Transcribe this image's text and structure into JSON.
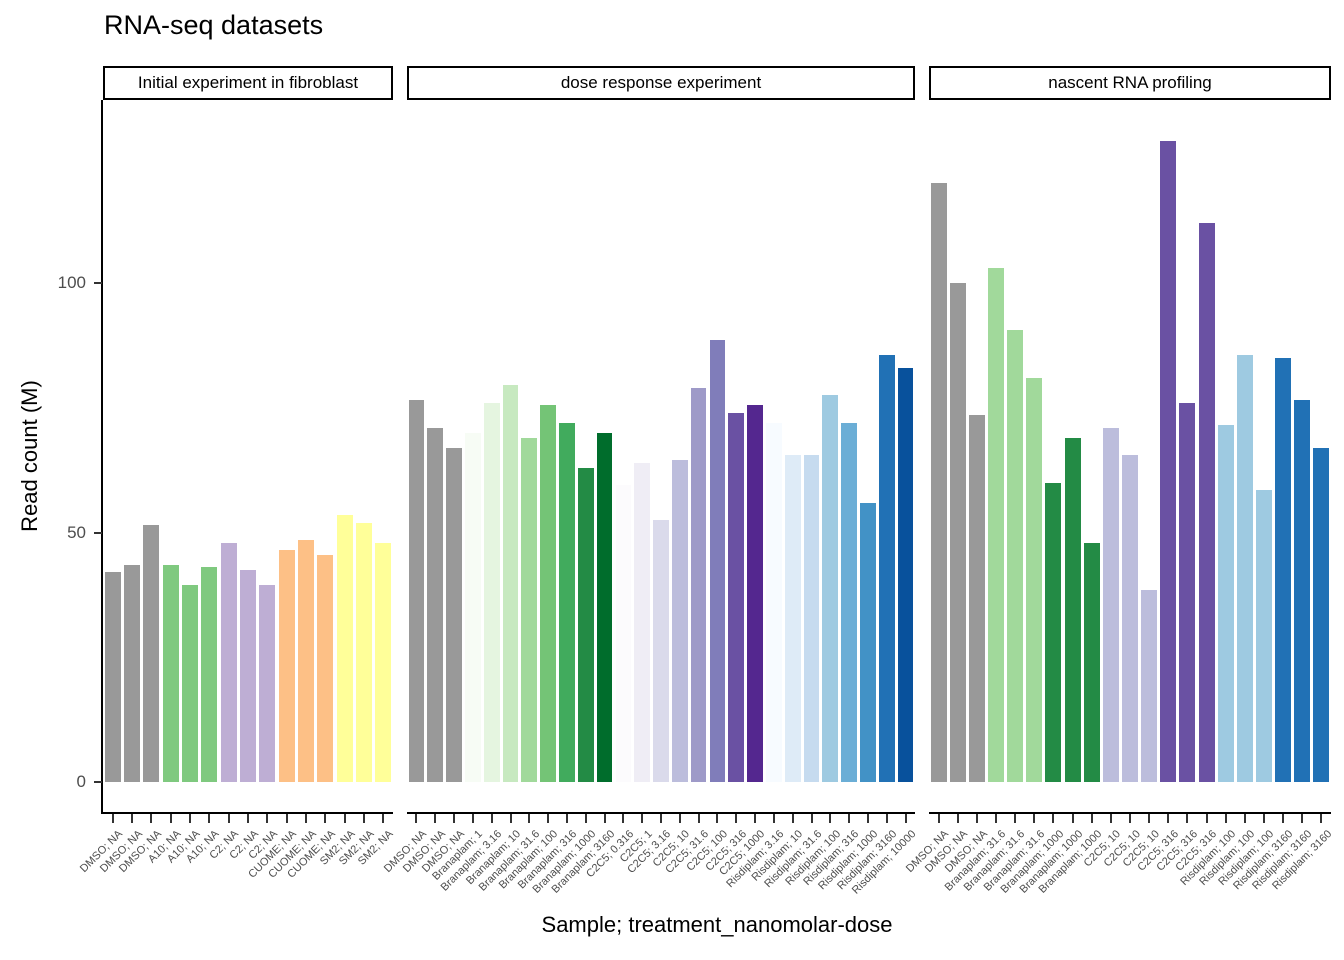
{
  "theme": {
    "background": "#ffffff",
    "axis_line_color": "#000000",
    "tick_color": "#333333",
    "tick_label_color": "#4d4d4d",
    "strip_border_color": "#000000",
    "strip_background": "#ffffff",
    "dmso_gray": "#999999"
  },
  "chart_data": {
    "type": "bar",
    "title": "RNA-seq datasets",
    "xlabel": "Sample; treatment_nanomolar-dose",
    "ylabel": "Read count (M)",
    "yticks": [
      0,
      50,
      100
    ],
    "ylim": [
      -6.2,
      136.7
    ],
    "grid": false,
    "legend_position": "none",
    "facets": [
      {
        "label": "Initial experiment in fibroblast",
        "bars": [
          {
            "label": "DMSO; NA",
            "value": 42,
            "color": "#999999"
          },
          {
            "label": "DMSO; NA",
            "value": 43.5,
            "color": "#999999"
          },
          {
            "label": "DMSO; NA",
            "value": 51.5,
            "color": "#999999"
          },
          {
            "label": "A10; NA",
            "value": 43.5,
            "color": "#7FC97F"
          },
          {
            "label": "A10; NA",
            "value": 39.5,
            "color": "#7FC97F"
          },
          {
            "label": "A10; NA",
            "value": 43,
            "color": "#7FC97F"
          },
          {
            "label": "C2; NA",
            "value": 48,
            "color": "#BEAED4"
          },
          {
            "label": "C2; NA",
            "value": 42.5,
            "color": "#BEAED4"
          },
          {
            "label": "C2; NA",
            "value": 39.5,
            "color": "#BEAED4"
          },
          {
            "label": "CUOME; NA",
            "value": 46.5,
            "color": "#FDC086"
          },
          {
            "label": "CUOME; NA",
            "value": 48.5,
            "color": "#FDC086"
          },
          {
            "label": "CUOME; NA",
            "value": 45.5,
            "color": "#FDC086"
          },
          {
            "label": "SM2; NA",
            "value": 53.5,
            "color": "#FFFF99"
          },
          {
            "label": "SM2; NA",
            "value": 52,
            "color": "#FFFF99"
          },
          {
            "label": "SM2; NA",
            "value": 48,
            "color": "#FFFF99"
          }
        ]
      },
      {
        "label": "dose response experiment",
        "bars": [
          {
            "label": "DMSO; NA",
            "value": 76.5,
            "color": "#999999"
          },
          {
            "label": "DMSO; NA",
            "value": 71,
            "color": "#999999"
          },
          {
            "label": "DMSO; NA",
            "value": 67,
            "color": "#999999"
          },
          {
            "label": "Branaplam; 1",
            "value": 70,
            "color": "#F7FCF5"
          },
          {
            "label": "Branaplam; 3.16",
            "value": 76,
            "color": "#E5F5E0"
          },
          {
            "label": "Branaplam; 10",
            "value": 79.5,
            "color": "#C7E9C0"
          },
          {
            "label": "Branaplam; 31.6",
            "value": 69,
            "color": "#A1D99B"
          },
          {
            "label": "Branaplam; 100",
            "value": 75.5,
            "color": "#74C476"
          },
          {
            "label": "Branaplam; 316",
            "value": 72,
            "color": "#41AB5D"
          },
          {
            "label": "Branaplam; 1000",
            "value": 63,
            "color": "#238B45"
          },
          {
            "label": "Branaplam; 3160",
            "value": 70,
            "color": "#006D2C"
          },
          {
            "label": "C2C5; 0.316",
            "value": 59.5,
            "color": "#FCFBFD"
          },
          {
            "label": "C2C5; 1",
            "value": 64,
            "color": "#EFEDF5"
          },
          {
            "label": "C2C5; 3.16",
            "value": 52.5,
            "color": "#DADAEB"
          },
          {
            "label": "C2C5; 10",
            "value": 64.5,
            "color": "#BCBDDC"
          },
          {
            "label": "C2C5; 31.6",
            "value": 79,
            "color": "#9E9AC8"
          },
          {
            "label": "C2C5; 100",
            "value": 88.5,
            "color": "#807DBA"
          },
          {
            "label": "C2C5; 316",
            "value": 74,
            "color": "#6A51A3"
          },
          {
            "label": "C2C5; 1000",
            "value": 75.5,
            "color": "#54278F"
          },
          {
            "label": "Risdiplam; 3.16",
            "value": 72,
            "color": "#F7FBFF"
          },
          {
            "label": "Risdiplam; 10",
            "value": 65.5,
            "color": "#DEEBF7"
          },
          {
            "label": "Risdiplam; 31.6",
            "value": 65.5,
            "color": "#C6DBEF"
          },
          {
            "label": "Risdiplam; 100",
            "value": 77.5,
            "color": "#9ECAE1"
          },
          {
            "label": "Risdiplam; 316",
            "value": 72,
            "color": "#6BAED6"
          },
          {
            "label": "Risdiplam; 1000",
            "value": 56,
            "color": "#4292C6"
          },
          {
            "label": "Risdiplam; 3160",
            "value": 85.5,
            "color": "#2171B5"
          },
          {
            "label": "Risdiplam; 10000",
            "value": 83,
            "color": "#08519C"
          }
        ]
      },
      {
        "label": "nascent RNA profiling",
        "bars": [
          {
            "label": "DMSO; NA",
            "value": 120,
            "color": "#999999"
          },
          {
            "label": "DMSO; NA",
            "value": 100,
            "color": "#999999"
          },
          {
            "label": "DMSO; NA",
            "value": 73.5,
            "color": "#999999"
          },
          {
            "label": "Branaplam; 31.6",
            "value": 103,
            "color": "#A1D99B"
          },
          {
            "label": "Branaplam; 31.6",
            "value": 90.5,
            "color": "#A1D99B"
          },
          {
            "label": "Branaplam; 31.6",
            "value": 81,
            "color": "#A1D99B"
          },
          {
            "label": "Branaplam; 1000",
            "value": 60,
            "color": "#238B45"
          },
          {
            "label": "Branaplam; 1000",
            "value": 69,
            "color": "#238B45"
          },
          {
            "label": "Branaplam; 1000",
            "value": 48,
            "color": "#238B45"
          },
          {
            "label": "C2C5; 10",
            "value": 71,
            "color": "#BCBDDC"
          },
          {
            "label": "C2C5; 10",
            "value": 65.5,
            "color": "#BCBDDC"
          },
          {
            "label": "C2C5; 10",
            "value": 38.5,
            "color": "#BCBDDC"
          },
          {
            "label": "C2C5; 316",
            "value": 128.5,
            "color": "#6A51A3"
          },
          {
            "label": "C2C5; 316",
            "value": 76,
            "color": "#6A51A3"
          },
          {
            "label": "C2C5; 316",
            "value": 112,
            "color": "#6A51A3"
          },
          {
            "label": "Risdiplam; 100",
            "value": 71.5,
            "color": "#9ECAE1"
          },
          {
            "label": "Risdiplam; 100",
            "value": 85.5,
            "color": "#9ECAE1"
          },
          {
            "label": "Risdiplam; 100",
            "value": 58.5,
            "color": "#9ECAE1"
          },
          {
            "label": "Risdiplam; 3160",
            "value": 85,
            "color": "#2171B5"
          },
          {
            "label": "Risdiplam; 3160",
            "value": 76.5,
            "color": "#2171B5"
          },
          {
            "label": "Risdiplam; 3160",
            "value": 67,
            "color": "#2171B5"
          }
        ]
      }
    ]
  }
}
